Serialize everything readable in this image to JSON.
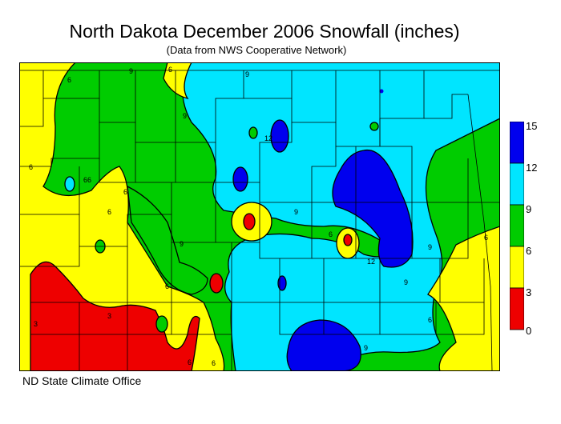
{
  "title": "North Dakota December 2006 Snowfall (inches)",
  "subtitle": "(Data from NWS Cooperative Network)",
  "credit": "ND State Climate Office",
  "legend": {
    "labels": [
      "15",
      "12",
      "9",
      "6",
      "3",
      "0"
    ],
    "bins": [
      {
        "range": [
          12,
          15
        ],
        "color": "#0000ee"
      },
      {
        "range": [
          9,
          12
        ],
        "color": "#00e5ff"
      },
      {
        "range": [
          6,
          9
        ],
        "color": "#00cc00"
      },
      {
        "range": [
          3,
          6
        ],
        "color": "#ffff00"
      },
      {
        "range": [
          0,
          3
        ],
        "color": "#ee0000"
      }
    ]
  },
  "contour_labels": [
    "6",
    "9",
    "6",
    "9",
    "6",
    "9",
    "12",
    "6",
    "9",
    "6",
    "9",
    "6",
    "3",
    "6",
    "6",
    "9",
    "12",
    "6",
    "9",
    "9",
    "6",
    "3",
    "6",
    "6",
    "6"
  ]
}
